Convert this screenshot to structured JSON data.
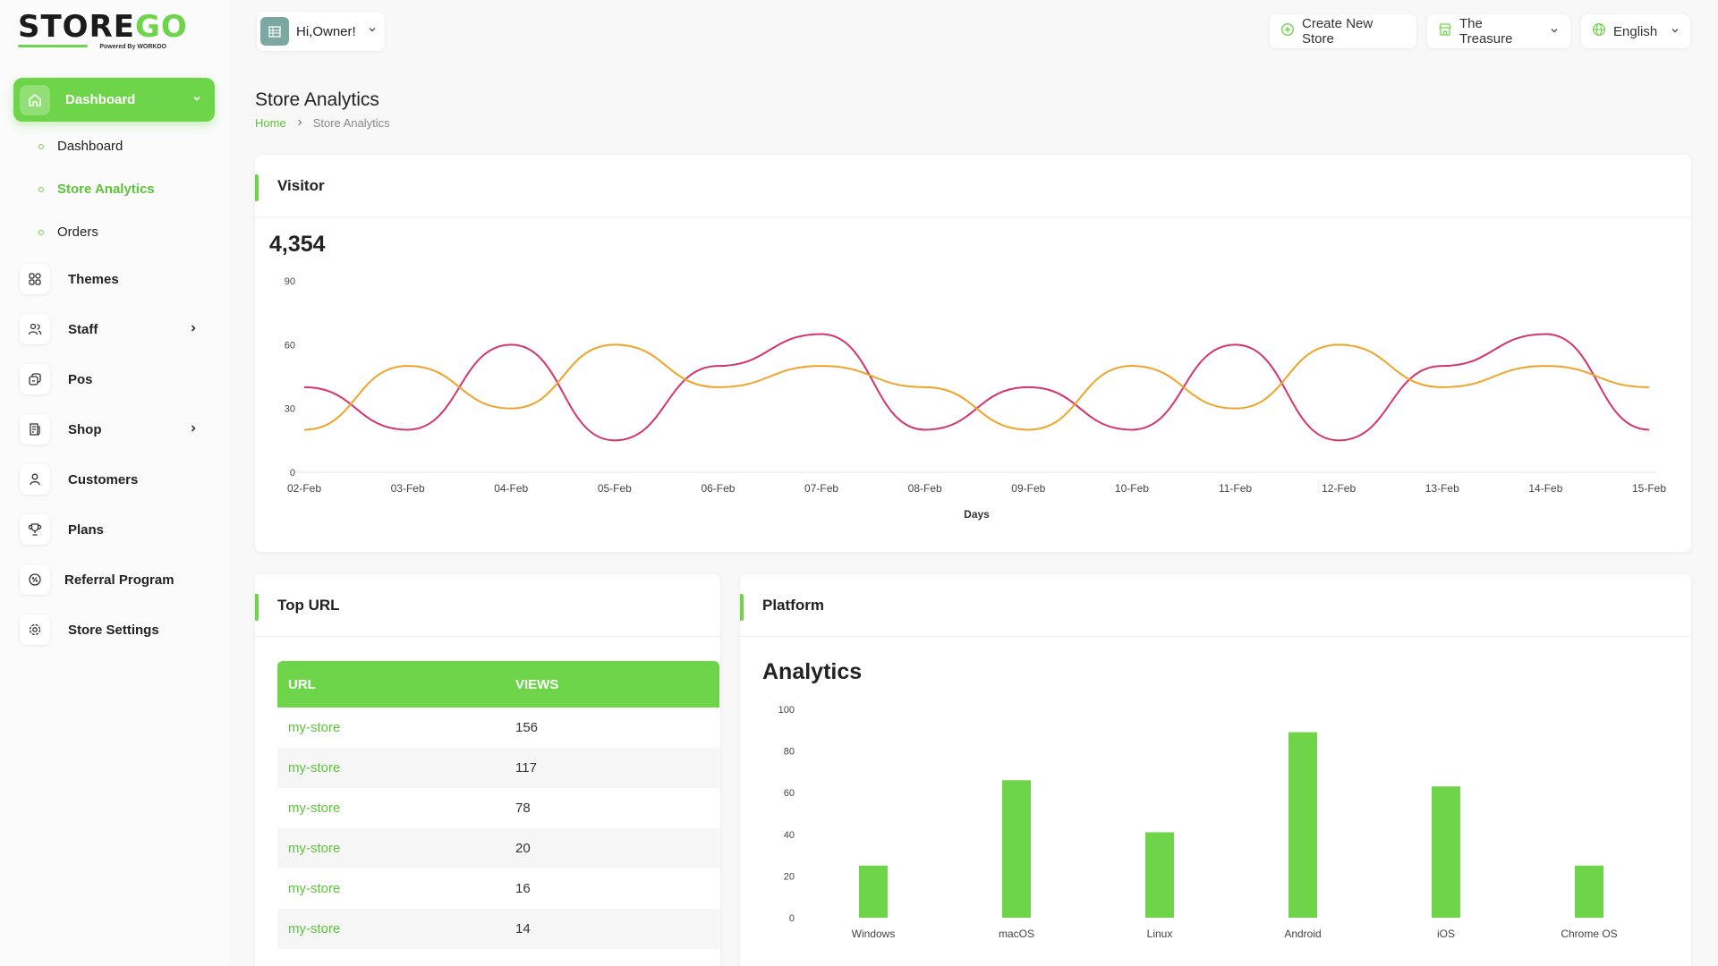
{
  "brand": {
    "logo_text_a": "STORE",
    "logo_text_b": "GO",
    "logo_sub": "Powered By WORKDO"
  },
  "sidebar": {
    "main_item": {
      "label": "Dashboard"
    },
    "sub_items": [
      {
        "label": "Dashboard",
        "active": false
      },
      {
        "label": "Store Analytics",
        "active": true
      },
      {
        "label": "Orders",
        "active": false
      }
    ],
    "items": [
      {
        "label": "Themes",
        "icon": "themes-icon"
      },
      {
        "label": "Staff",
        "icon": "users-icon",
        "has_children": true
      },
      {
        "label": "Pos",
        "icon": "pos-icon"
      },
      {
        "label": "Shop",
        "icon": "shop-icon",
        "has_children": true
      },
      {
        "label": "Customers",
        "icon": "user-icon"
      },
      {
        "label": "Plans",
        "icon": "trophy-icon"
      },
      {
        "label": "Referral Program",
        "icon": "referral-icon"
      },
      {
        "label": "Store Settings",
        "icon": "gear-icon"
      }
    ]
  },
  "header": {
    "greeting": "Hi,Owner!",
    "create_store": "Create New Store",
    "store_name": "The Treasure",
    "language": "English"
  },
  "page": {
    "title": "Store Analytics",
    "breadcrumb": [
      "Home",
      "Store Analytics"
    ]
  },
  "visitor": {
    "title": "Visitor",
    "count": "4,354",
    "chart_data": {
      "type": "line",
      "x": [
        "02-Feb",
        "03-Feb",
        "04-Feb",
        "05-Feb",
        "06-Feb",
        "07-Feb",
        "08-Feb",
        "09-Feb",
        "10-Feb",
        "11-Feb",
        "12-Feb",
        "13-Feb",
        "14-Feb",
        "15-Feb"
      ],
      "series": [
        {
          "values": [
            40,
            20,
            60,
            15,
            50,
            65,
            20,
            40,
            20,
            60,
            15,
            50,
            65,
            20
          ],
          "color": "#d6336c"
        },
        {
          "values": [
            20,
            50,
            30,
            60,
            40,
            50,
            40,
            20,
            50,
            30,
            60,
            40,
            50,
            40
          ],
          "color": "#f0a328"
        }
      ],
      "xlabel": "Days",
      "ylim": [
        0,
        90
      ],
      "yticks": [
        0,
        30,
        60,
        90
      ]
    }
  },
  "top_url": {
    "title": "Top URL",
    "columns": [
      "URL",
      "VIEWS"
    ],
    "rows": [
      {
        "url": "my-store",
        "views": "156"
      },
      {
        "url": "my-store",
        "views": "117"
      },
      {
        "url": "my-store",
        "views": "78"
      },
      {
        "url": "my-store",
        "views": "20"
      },
      {
        "url": "my-store",
        "views": "16"
      },
      {
        "url": "my-store",
        "views": "14"
      }
    ]
  },
  "platform": {
    "title": "Platform",
    "subtitle": "Analytics",
    "chart_data": {
      "type": "bar",
      "categories": [
        "Windows",
        "macOS",
        "Linux",
        "Android",
        "iOS",
        "Chrome OS"
      ],
      "values": [
        25,
        66,
        41,
        89,
        63,
        25
      ],
      "ylim": [
        0,
        100
      ],
      "yticks": [
        0,
        20,
        40,
        60,
        80,
        100
      ],
      "color": "#6ed54a"
    }
  },
  "colors": {
    "accent": "#6ed54a",
    "accent_text": "#5cc43a"
  }
}
